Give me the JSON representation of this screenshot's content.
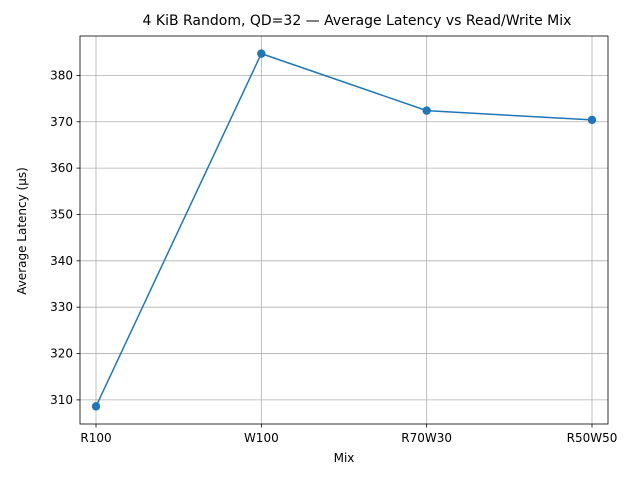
{
  "chart_data": {
    "type": "line",
    "title": "4 KiB Random, QD=32 — Average Latency vs Read/Write Mix",
    "xlabel": "Mix",
    "ylabel": "Average Latency (µs)",
    "categories": [
      "R100",
      "W100",
      "R70W30",
      "R50W50"
    ],
    "series": [
      {
        "values": [
          308.6,
          384.7,
          372.4,
          370.4
        ],
        "color": "#1f77b4",
        "marker": "circle"
      }
    ],
    "yticks": [
      310,
      320,
      330,
      340,
      350,
      360,
      370,
      380
    ],
    "ylim": [
      304.8,
      388.5
    ],
    "grid": true,
    "legend": "none"
  }
}
